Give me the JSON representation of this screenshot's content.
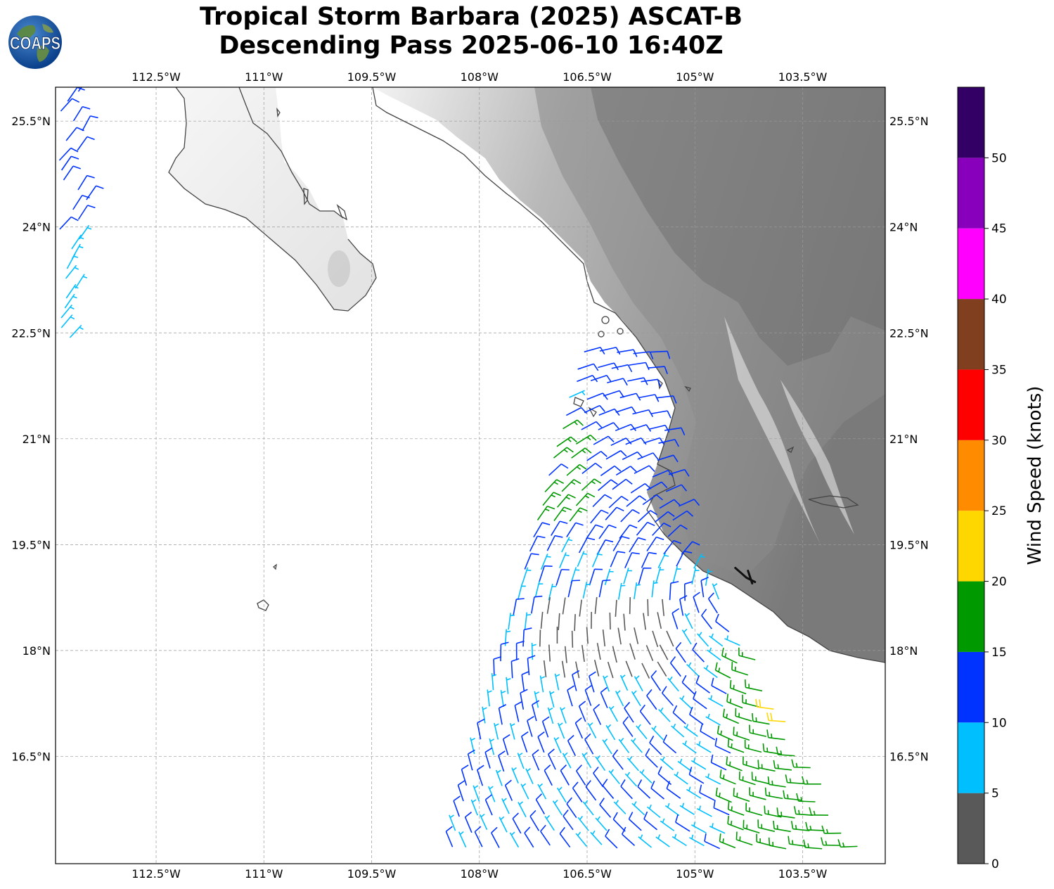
{
  "title": {
    "line1": "Tropical Storm Barbara (2025) ASCAT-B",
    "line2": "Descending Pass 2025-06-10 16:40Z"
  },
  "logo": {
    "text": "COAPS",
    "icon": "globe-icon"
  },
  "map": {
    "lon_range": [
      -113.9,
      -102.35
    ],
    "lat_range": [
      14.98,
      25.98
    ],
    "lon_ticks": [
      -112.5,
      -111,
      -109.5,
      -108,
      -106.5,
      -105,
      -103.5
    ],
    "lat_ticks": [
      16.5,
      18,
      19.5,
      21,
      22.5,
      24,
      25.5
    ],
    "lon_tick_labels": [
      "112.5°W",
      "111°W",
      "109.5°W",
      "108°W",
      "106.5°W",
      "105°W",
      "103.5°W"
    ],
    "lat_tick_labels": [
      "16.5°N",
      "18°N",
      "19.5°N",
      "21°N",
      "22.5°N",
      "24°N",
      "25.5°N"
    ],
    "storm_center": {
      "lon": -104.3,
      "lat": 19.05
    },
    "colors": {
      "coast": "#444444",
      "ocean": "#ffffff",
      "terrain_light": "#f4f4f4",
      "terrain_dark": "#6a6a6a"
    }
  },
  "colorbar": {
    "label": "Wind Speed (knots)",
    "ticks": [
      "0",
      "5",
      "10",
      "15",
      "20",
      "25",
      "30",
      "35",
      "40",
      "45",
      "50"
    ],
    "bins": [
      {
        "min": 0,
        "max": 5,
        "color": "#595959"
      },
      {
        "min": 5,
        "max": 10,
        "color": "#00bfff"
      },
      {
        "min": 10,
        "max": 15,
        "color": "#0033ff"
      },
      {
        "min": 15,
        "max": 20,
        "color": "#009900"
      },
      {
        "min": 20,
        "max": 25,
        "color": "#ffd700"
      },
      {
        "min": 25,
        "max": 30,
        "color": "#ff8c00"
      },
      {
        "min": 30,
        "max": 35,
        "color": "#ff0000"
      },
      {
        "min": 35,
        "max": 40,
        "color": "#804020"
      },
      {
        "min": 40,
        "max": 45,
        "color": "#ff00ff"
      },
      {
        "min": 45,
        "max": 50,
        "color": "#8800bb"
      },
      {
        "min": 50,
        "max": 55,
        "color": "#330066"
      }
    ]
  }
}
